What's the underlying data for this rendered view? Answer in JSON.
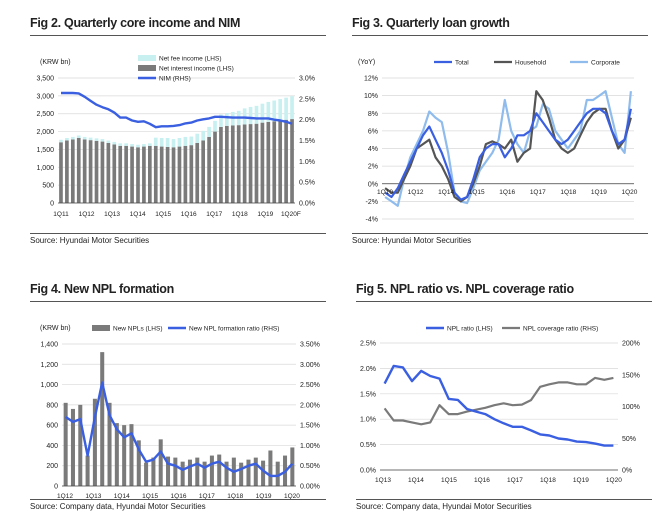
{
  "figures": [
    {
      "title": "Fig 2. Quarterly core income and NIM",
      "source": "Source: Hyundai Motor Securities"
    },
    {
      "title": "Fig 3. Quarterly loan growth",
      "source": "Source: Hyundai Motor Securities"
    },
    {
      "title": "Fig 4. New NPL formation",
      "source": "Source: Company data, Hyundai Motor Securities"
    },
    {
      "title": "Fig 5. NPL ratio vs. NPL coverage ratio",
      "source": "Source: Company data, Hyundai Motor Securities"
    }
  ],
  "colors": {
    "blue": "#3a5fe0",
    "light_blue": "#8fbcec",
    "dark_gray": "#555555",
    "gray_bar": "#7a7a7a",
    "net_fee_fill": "#c8f0f0",
    "grid": "#d9d9d9"
  },
  "chart_data": [
    {
      "type": "bar",
      "stacked": true,
      "y_unit_label": "(KRW bn)",
      "ylim": [
        0,
        3500
      ],
      "y_ticks": [
        "0",
        "500",
        "1,000",
        "1,500",
        "2,000",
        "2,500",
        "3,000",
        "3,500"
      ],
      "y2lim": [
        0,
        3.0
      ],
      "y2_ticks": [
        "0.0%",
        "0.5%",
        "1.0%",
        "1.5%",
        "2.0%",
        "2.5%",
        "3.0%"
      ],
      "x_tick_labels": [
        "1Q11",
        "1Q12",
        "1Q13",
        "1Q14",
        "1Q15",
        "1Q16",
        "1Q17",
        "1Q18",
        "1Q19",
        "1Q20F"
      ],
      "series": [
        {
          "name": "Net fee income (LHS)",
          "axis": "left",
          "values": [
            70,
            70,
            70,
            70,
            70,
            70,
            70,
            70,
            70,
            70,
            70,
            70,
            70,
            70,
            70,
            70,
            230,
            240,
            250,
            230,
            240,
            250,
            240,
            260,
            270,
            280,
            300,
            350,
            360,
            380,
            400,
            450,
            480,
            500,
            530,
            560,
            580,
            600,
            620,
            640
          ]
        },
        {
          "name": "Net interest income (LHS)",
          "axis": "left",
          "values": [
            1700,
            1750,
            1780,
            1820,
            1780,
            1760,
            1740,
            1720,
            1680,
            1640,
            1600,
            1600,
            1580,
            1560,
            1580,
            1600,
            1600,
            1580,
            1570,
            1560,
            1580,
            1600,
            1620,
            1680,
            1750,
            1850,
            2000,
            2130,
            2160,
            2170,
            2180,
            2200,
            2210,
            2220,
            2250,
            2270,
            2290,
            2310,
            2330,
            2350
          ]
        },
        {
          "name": "NIM (RHS)",
          "axis": "right",
          "values": [
            2.64,
            2.64,
            2.64,
            2.63,
            2.55,
            2.45,
            2.36,
            2.3,
            2.25,
            2.17,
            2.05,
            2.05,
            1.98,
            1.95,
            1.96,
            1.9,
            1.82,
            1.84,
            1.84,
            1.85,
            1.87,
            1.91,
            1.93,
            1.98,
            2.01,
            2.03,
            2.07,
            2.07,
            2.06,
            2.05,
            2.05,
            2.05,
            2.04,
            2.03,
            2.03,
            2.03,
            2.0,
            1.98,
            1.95,
            1.9
          ]
        }
      ]
    },
    {
      "type": "line",
      "y_unit_label": "(YoY)",
      "ylim": [
        -4,
        12
      ],
      "y_ticks": [
        "-4%",
        "-2%",
        "0%",
        "2%",
        "4%",
        "6%",
        "8%",
        "10%",
        "12%"
      ],
      "x_tick_labels": [
        "1Q10",
        "1Q12",
        "1Q14",
        "1Q15",
        "1Q16",
        "1Q17",
        "1Q18",
        "1Q19",
        "1Q20"
      ],
      "series": [
        {
          "name": "Total",
          "values": [
            -1.0,
            -1.5,
            -0.5,
            1.0,
            2.5,
            4.0,
            5.5,
            6.5,
            5.0,
            3.5,
            1.5,
            -1.0,
            -1.8,
            -1.5,
            0.5,
            3.0,
            4.0,
            4.5,
            4.5,
            3.0,
            4.0,
            5.5,
            5.5,
            6.0,
            8.0,
            7.0,
            6.0,
            5.0,
            4.5,
            5.0,
            6.0,
            7.0,
            8.0,
            8.5,
            8.5,
            8.0,
            6.0,
            4.5,
            5.0,
            8.5
          ]
        },
        {
          "name": "Household",
          "values": [
            -0.5,
            -1.0,
            -1.0,
            0.5,
            2.0,
            4.0,
            4.5,
            5.0,
            3.0,
            2.0,
            0.5,
            -1.5,
            -2.0,
            -1.5,
            0.0,
            2.0,
            4.5,
            4.8,
            4.5,
            4.0,
            5.0,
            2.5,
            3.5,
            4.0,
            10.5,
            9.5,
            7.5,
            5.0,
            4.0,
            3.5,
            4.0,
            5.5,
            7.0,
            8.0,
            8.5,
            8.5,
            6.0,
            4.0,
            5.0,
            7.5
          ]
        },
        {
          "name": "Corporate",
          "values": [
            -1.5,
            -2.0,
            -2.5,
            0.5,
            3.0,
            4.5,
            6.0,
            8.2,
            7.5,
            7.0,
            3.5,
            -1.0,
            -2.0,
            -2.2,
            -0.5,
            1.5,
            2.5,
            3.5,
            5.0,
            9.5,
            6.0,
            4.5,
            3.5,
            6.0,
            6.5,
            9.0,
            8.5,
            6.0,
            5.0,
            4.0,
            5.0,
            6.0,
            9.5,
            9.5,
            10.0,
            10.5,
            7.5,
            4.5,
            3.5,
            10.5
          ]
        }
      ]
    },
    {
      "type": "bar",
      "y_unit_label": "(KRW bn)",
      "ylim": [
        0,
        1400
      ],
      "y_ticks": [
        "0",
        "200",
        "400",
        "600",
        "800",
        "1,000",
        "1,200",
        "1,400"
      ],
      "y2lim": [
        0,
        3.5
      ],
      "y2_ticks": [
        "0.00%",
        "0.50%",
        "1.00%",
        "1.50%",
        "2.00%",
        "2.50%",
        "3.00%",
        "3.50%"
      ],
      "x_tick_labels": [
        "1Q12",
        "1Q13",
        "1Q14",
        "1Q15",
        "1Q16",
        "1Q17",
        "1Q18",
        "1Q19",
        "1Q20"
      ],
      "series": [
        {
          "name": "New NPLs (LHS)",
          "axis": "left",
          "values": [
            820,
            760,
            800,
            300,
            860,
            1320,
            820,
            620,
            600,
            610,
            450,
            230,
            280,
            460,
            290,
            280,
            240,
            260,
            280,
            240,
            300,
            310,
            240,
            280,
            230,
            260,
            280,
            250,
            350,
            240,
            300,
            380
          ]
        },
        {
          "name": "New NPL formation ratio (RHS)",
          "axis": "right",
          "values": [
            1.7,
            1.58,
            1.65,
            0.75,
            1.7,
            2.55,
            1.75,
            1.4,
            1.2,
            1.3,
            0.9,
            0.6,
            0.65,
            0.85,
            0.55,
            0.5,
            0.4,
            0.48,
            0.55,
            0.45,
            0.55,
            0.6,
            0.45,
            0.35,
            0.42,
            0.5,
            0.55,
            0.38,
            0.25,
            0.25,
            0.35,
            0.55
          ]
        }
      ]
    },
    {
      "type": "line",
      "ylim": [
        0,
        2.5
      ],
      "y_ticks": [
        "0.0%",
        "0.5%",
        "1.0%",
        "1.5%",
        "2.0%",
        "2.5%"
      ],
      "y2lim": [
        0,
        200
      ],
      "y2_ticks": [
        "0%",
        "50%",
        "100%",
        "150%",
        "200%"
      ],
      "x_tick_labels": [
        "1Q13",
        "1Q14",
        "1Q15",
        "1Q16",
        "1Q17",
        "1Q18",
        "1Q19",
        "1Q20"
      ],
      "series": [
        {
          "name": "NPL ratio (LHS)",
          "axis": "left",
          "values": [
            1.7,
            2.05,
            2.02,
            1.75,
            1.95,
            1.85,
            1.8,
            1.4,
            1.38,
            1.2,
            1.15,
            1.1,
            1.0,
            0.92,
            0.85,
            0.85,
            0.78,
            0.7,
            0.68,
            0.62,
            0.6,
            0.56,
            0.55,
            0.52,
            0.48,
            0.48
          ]
        },
        {
          "name": "NPL coverage ratio (RHS)",
          "axis": "right",
          "values": [
            97,
            78,
            78,
            75,
            72,
            75,
            102,
            88,
            88,
            92,
            95,
            98,
            102,
            105,
            102,
            103,
            110,
            131,
            135,
            138,
            138,
            135,
            135,
            145,
            142,
            145
          ]
        }
      ]
    }
  ]
}
